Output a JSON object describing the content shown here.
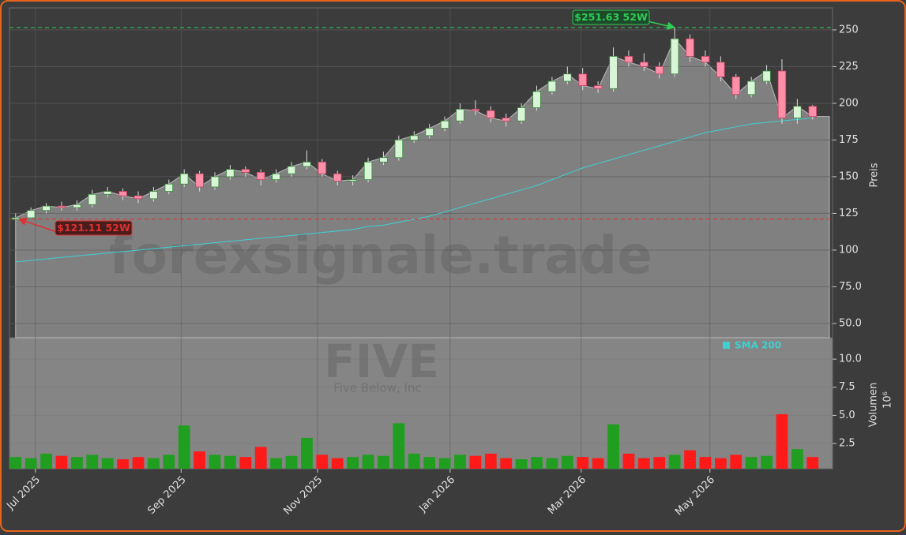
{
  "chart_data": {
    "type": "candlestick",
    "watermark": "forexsignale.trade",
    "symbol": "FIVE",
    "company": "Five Below, Inc",
    "categories": [
      null,
      null,
      null,
      null,
      null,
      null,
      null,
      null,
      null,
      null,
      null,
      null,
      null,
      null,
      null,
      null,
      null,
      null,
      null,
      null,
      null,
      null,
      null,
      null,
      null,
      null,
      null,
      null,
      null,
      null,
      null,
      null,
      null,
      null,
      null,
      null,
      null,
      null,
      null,
      null,
      null,
      null,
      null,
      null,
      null,
      null,
      null,
      null,
      null,
      null,
      null,
      null,
      null
    ],
    "open": [
      121,
      122,
      127,
      130,
      129,
      131,
      138,
      140,
      137,
      135,
      140,
      145,
      152,
      143,
      150,
      155,
      153,
      148,
      152,
      157,
      160,
      152,
      147,
      148,
      160,
      163,
      175,
      178,
      183,
      188,
      196,
      195,
      190,
      188,
      197,
      208,
      215,
      220,
      212,
      210,
      232,
      228,
      225,
      220,
      244,
      232,
      228,
      218,
      206,
      215,
      222,
      190,
      198
    ],
    "high": [
      125,
      129,
      132,
      133,
      134,
      141,
      143,
      142,
      140,
      143,
      148,
      155,
      154,
      153,
      158,
      157,
      155,
      155,
      160,
      168,
      162,
      154,
      151,
      163,
      167,
      178,
      181,
      186,
      191,
      200,
      202,
      198,
      193,
      200,
      212,
      218,
      225,
      224,
      215,
      238,
      236,
      234,
      228,
      251.63,
      247,
      236,
      232,
      220,
      218,
      226,
      230,
      203,
      199
    ],
    "low": [
      121.11,
      121.5,
      125,
      127,
      127,
      129,
      136,
      134,
      132,
      133,
      138,
      143,
      140,
      141,
      148,
      150,
      144,
      146,
      150,
      155,
      150,
      144,
      144,
      146,
      158,
      161,
      173,
      176,
      181,
      186,
      192,
      187,
      184,
      186,
      195,
      206,
      213,
      209,
      207,
      208,
      225,
      222,
      217,
      218,
      228,
      225,
      215,
      203,
      204,
      213,
      186,
      186,
      189
    ],
    "close": [
      122,
      127,
      130,
      129,
      131,
      138,
      140,
      137,
      135,
      140,
      145,
      152,
      143,
      150,
      155,
      153,
      148,
      152,
      157,
      160,
      152,
      147,
      148,
      160,
      163,
      175,
      178,
      183,
      188,
      196,
      195,
      190,
      188,
      197,
      208,
      215,
      220,
      212,
      210,
      232,
      228,
      225,
      220,
      244,
      232,
      228,
      218,
      206,
      215,
      222,
      190,
      198,
      191
    ],
    "candle_colors": {
      "up": "#d8f5d8",
      "down": "#ff8fa8"
    },
    "area_color": "#808080",
    "series": [
      {
        "name": "SMA 200",
        "color": "#40d0d0",
        "values": [
          92,
          93,
          94,
          95,
          96,
          97,
          98,
          99,
          100,
          101,
          102,
          103,
          104,
          105,
          106,
          107,
          108,
          109,
          110,
          111,
          112,
          113,
          114,
          116,
          117,
          119,
          121,
          123,
          126,
          129,
          132,
          135,
          138,
          141,
          144,
          148,
          152,
          156,
          159,
          162,
          165,
          168,
          171,
          174,
          177,
          180,
          182,
          184,
          186,
          187,
          188,
          189,
          190
        ]
      }
    ],
    "annotations": [
      {
        "value": 251.63,
        "label": "$251.63 52W",
        "color": "#2ecc55"
      },
      {
        "value": 121.11,
        "label": "$121.11 52W",
        "color": "#e03030"
      }
    ],
    "ylim": [
      40.3,
      265
    ],
    "yticks": [
      {
        "value": 50,
        "label": "50.0"
      },
      {
        "value": 75,
        "label": "75.0"
      },
      100,
      125,
      150,
      175,
      200,
      225,
      250
    ],
    "ylabel": "Preis",
    "grid": true,
    "xlim": [
      -0.4,
      53.3
    ],
    "xticks": [
      {
        "value": 1.29,
        "label": "Jul 2025"
      },
      {
        "value": 10.8,
        "label": "Sep 2025"
      },
      {
        "value": 19.7,
        "label": "Nov 2025"
      },
      {
        "value": 28.35,
        "label": "Jan 2026"
      },
      {
        "value": 36.9,
        "label": "Mar 2026"
      },
      {
        "value": 45.3,
        "label": "May 2026"
      }
    ],
    "volume": {
      "values": [
        1.3,
        1.2,
        1.6,
        1.4,
        1.3,
        1.5,
        1.2,
        1.1,
        1.3,
        1.2,
        1.5,
        4.1,
        1.8,
        1.5,
        1.4,
        1.3,
        2.2,
        1.2,
        1.4,
        3.0,
        1.5,
        1.2,
        1.3,
        1.5,
        1.4,
        4.3,
        1.6,
        1.3,
        1.2,
        1.5,
        1.4,
        1.6,
        1.2,
        1.1,
        1.3,
        1.2,
        1.4,
        1.3,
        1.2,
        4.2,
        1.6,
        1.2,
        1.3,
        1.5,
        1.9,
        1.3,
        1.2,
        1.5,
        1.3,
        1.4,
        5.1,
        2.0,
        1.3
      ],
      "colors": {
        "up": "#1f9e1f",
        "down": "#ff1a1a"
      },
      "ylim": [
        0.26,
        11.9
      ],
      "yticks": [
        2.5,
        {
          "value": 5,
          "label": "5.0"
        },
        7.5,
        {
          "value": 10,
          "label": "10.0"
        }
      ],
      "ylabel": "Volumen",
      "scale_label": "10⁶"
    }
  }
}
